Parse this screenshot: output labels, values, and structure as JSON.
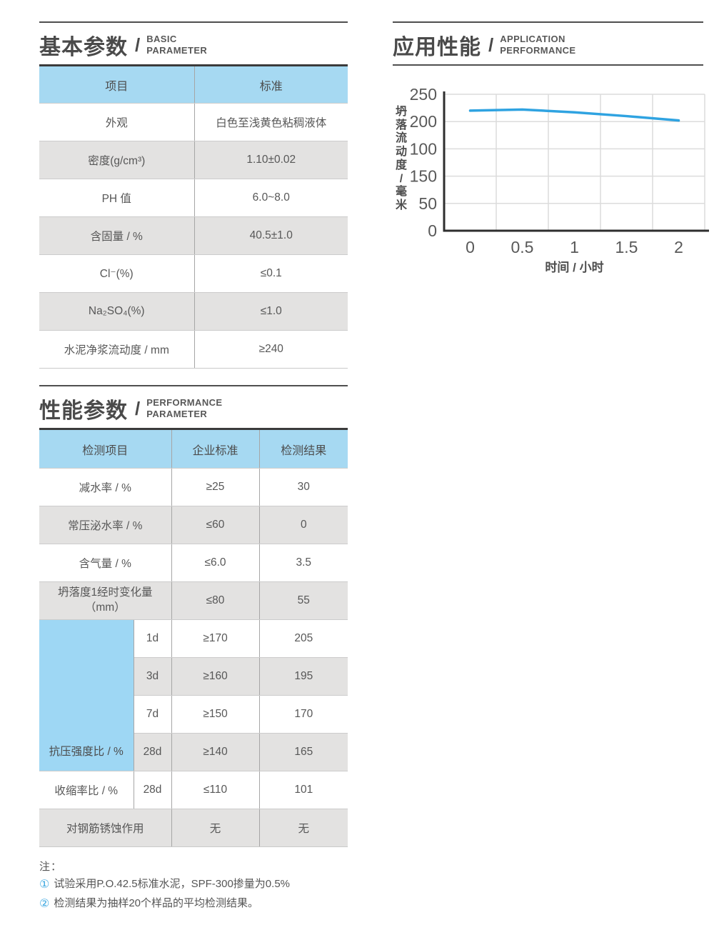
{
  "sections": {
    "basic": {
      "title_cn": "基本参数",
      "separator": "/",
      "title_en_lines": [
        "BASIC",
        "PARAMETER"
      ]
    },
    "application": {
      "title_cn": "应用性能",
      "separator": "/",
      "title_en_lines": [
        "APPLICATION",
        "PERFORMANCE"
      ]
    },
    "performance": {
      "title_cn": "性能参数",
      "separator": "/",
      "title_en_lines": [
        "PERFORMANCE",
        "PARAMETER"
      ]
    }
  },
  "basic_table": {
    "headers": [
      "项目",
      "标准"
    ],
    "rows": [
      {
        "label": "外观",
        "value": "白色至浅黄色粘稠液体"
      },
      {
        "label": "密度(g/cm³)",
        "value": "1.10±0.02"
      },
      {
        "label": "PH 值",
        "value": "6.0~8.0"
      },
      {
        "label": "含固量 / %",
        "value": "40.5±1.0"
      },
      {
        "label": "Cl⁻(%)",
        "value": "≤0.1"
      },
      {
        "label": "Na₂SO₄(%)",
        "value": "≤1.0"
      },
      {
        "label": "水泥净浆流动度 / mm",
        "value": "≥240"
      }
    ]
  },
  "performance_table": {
    "headers": [
      "检测项目",
      "企业标准",
      "检测结果"
    ],
    "simple_rows": [
      {
        "item": "减水率 / %",
        "standard": "≥25",
        "result": "30"
      },
      {
        "item": "常压泌水率 / %",
        "standard": "≤60",
        "result": "0"
      },
      {
        "item": "含气量 / %",
        "standard": "≤6.0",
        "result": "3.5"
      },
      {
        "item_line1": "坍落度1经时变化量",
        "item_line2": "（mm）",
        "standard": "≤80",
        "result": "55"
      }
    ],
    "strength_group": {
      "label": "抗压强度比 / %",
      "sub_rows": [
        {
          "age": "1d",
          "standard": "≥170",
          "result": "205"
        },
        {
          "age": "3d",
          "standard": "≥160",
          "result": "195"
        },
        {
          "age": "7d",
          "standard": "≥150",
          "result": "170"
        },
        {
          "age": "28d",
          "standard": "≥140",
          "result": "165"
        }
      ]
    },
    "shrinkage_row": {
      "item": "收缩率比 / %",
      "age": "28d",
      "standard": "≤110",
      "result": "101"
    },
    "corrosion_row": {
      "item": "对钢筋锈蚀作用",
      "standard": "无",
      "result": "无"
    }
  },
  "chart_data": {
    "type": "line",
    "x": [
      0,
      0.5,
      1,
      1.5,
      2
    ],
    "values": [
      220,
      222,
      217,
      210,
      202
    ],
    "x_tick_labels": [
      "0",
      "0.5",
      "1",
      "1.5",
      "2"
    ],
    "y_tick_labels_top_to_bottom": [
      "250",
      "200",
      "100",
      "150",
      "50",
      "0"
    ],
    "y_axis_max": 250,
    "xlabel": "时间 / 小时",
    "ylabel": "坍落流动度/毫米",
    "line_color": "#2fa3e1",
    "grid": true,
    "legend": false
  },
  "notes": {
    "title": "注：",
    "items": [
      {
        "marker": "①",
        "text": "试验采用P.O.42.5标准水泥，SPF-300掺量为0.5%"
      },
      {
        "marker": "②",
        "text": "检测结果为抽样20个样品的平均检测结果。"
      }
    ]
  }
}
